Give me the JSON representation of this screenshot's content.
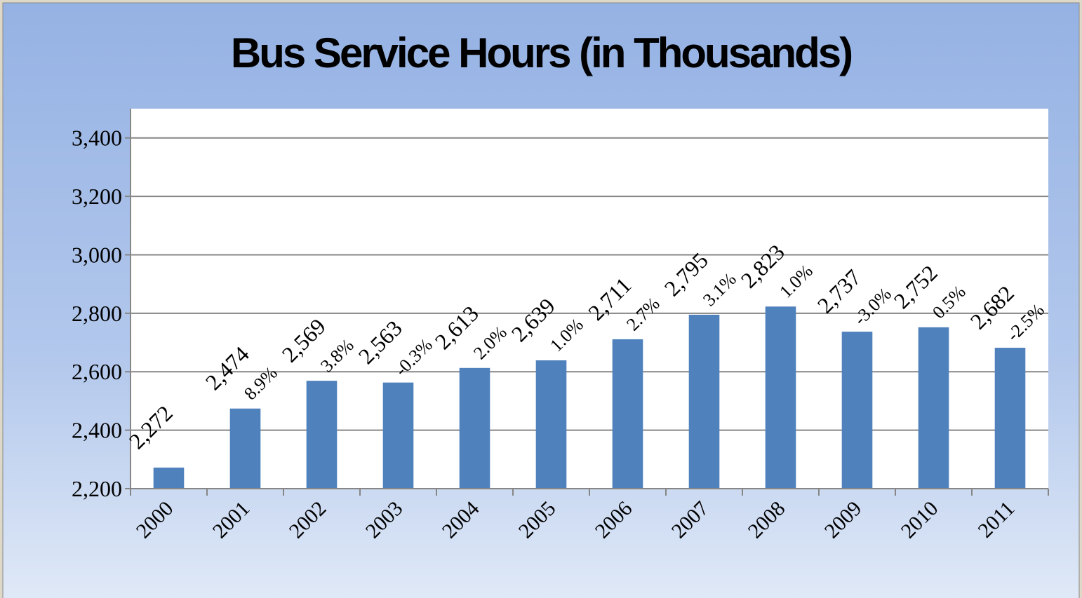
{
  "chart_data": {
    "type": "bar",
    "title": "Bus Service Hours (in Thousands)",
    "categories": [
      "2000",
      "2001",
      "2002",
      "2003",
      "2004",
      "2005",
      "2006",
      "2007",
      "2008",
      "2009",
      "2010",
      "2011"
    ],
    "values": [
      2272,
      2474,
      2569,
      2563,
      2613,
      2639,
      2711,
      2795,
      2823,
      2737,
      2752,
      2682
    ],
    "value_labels": [
      "2,272",
      "2,474",
      "2,569",
      "2,563",
      "2,613",
      "2,639",
      "2,711",
      "2,795",
      "2,823",
      "2,737",
      "2,752",
      "2,682"
    ],
    "annotations": [
      null,
      "8.9%",
      "3.8%",
      "-0.3%",
      "2.0%",
      "1.0%",
      "2.7%",
      "3.1%",
      "1.0%",
      "-3.0%",
      "0.5%",
      "-2.5%"
    ],
    "color": "#4f81bd",
    "ylim": [
      2200,
      3500
    ],
    "yticks": [
      {
        "value": 2200,
        "label": "2,200"
      },
      {
        "value": 2400,
        "label": "2,400"
      },
      {
        "value": 2600,
        "label": "2,600"
      },
      {
        "value": 2800,
        "label": "2,800"
      },
      {
        "value": 3000,
        "label": "3,000"
      },
      {
        "value": 3200,
        "label": "3,200"
      },
      {
        "value": 3400,
        "label": "3,400"
      }
    ],
    "grid": true
  }
}
